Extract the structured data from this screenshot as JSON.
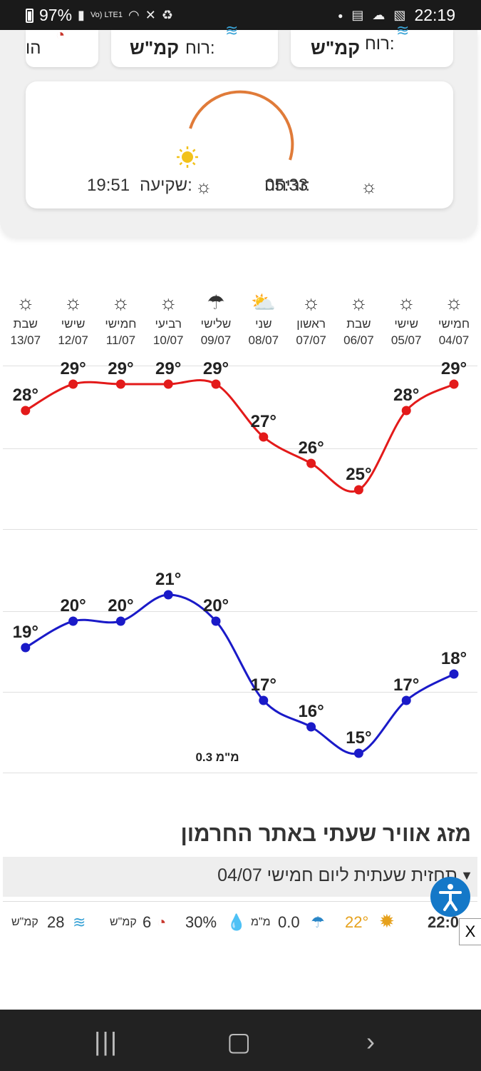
{
  "status_bar": {
    "battery": "97%",
    "network": "Vo) LTE1",
    "time": "22:19"
  },
  "wind_cards": [
    {
      "label": "רוח:",
      "value": "קמ\"ש"
    },
    {
      "label": "רוח:",
      "value": "קמ\"ש"
    },
    {
      "label": "הו"
    }
  ],
  "sun": {
    "sunrise_label": "זריחה:",
    "sunrise_time": "05:33",
    "sunset_label": "שקיעה:",
    "sunset_time": "19:51",
    "colors": {
      "arc": "#e07b39",
      "sun": "#f2c21b",
      "sunrise_icon": "#e06a2a",
      "sunset_icon": "#1f3a5a"
    }
  },
  "forecast": [
    {
      "day": "חמישי",
      "date": "04/07",
      "icon": "sun-icon",
      "high": 29,
      "low": 18
    },
    {
      "day": "שישי",
      "date": "05/07",
      "icon": "sun-icon",
      "high": 28,
      "low": 17
    },
    {
      "day": "שבת",
      "date": "06/07",
      "icon": "sun-icon",
      "high": 25,
      "low": 15
    },
    {
      "day": "ראשון",
      "date": "07/07",
      "icon": "sun-icon",
      "high": 26,
      "low": 16
    },
    {
      "day": "שני",
      "date": "08/07",
      "icon": "partly-cloudy-icon",
      "high": 27,
      "low": 17
    },
    {
      "day": "שלישי",
      "date": "09/07",
      "icon": "cloud-rain-sun-icon",
      "high": 29,
      "low": 20
    },
    {
      "day": "רביעי",
      "date": "10/07",
      "icon": "sun-icon",
      "high": 29,
      "low": 21
    },
    {
      "day": "חמישי",
      "date": "11/07",
      "icon": "sun-icon",
      "high": 29,
      "low": 20
    },
    {
      "day": "שישי",
      "date": "12/07",
      "icon": "sun-icon",
      "high": 29,
      "low": 20
    },
    {
      "day": "שבת",
      "date": "13/07",
      "icon": "sun-icon",
      "high": 28,
      "low": 19
    }
  ],
  "chart_data": {
    "type": "line",
    "categories": [
      "04/07",
      "05/07",
      "06/07",
      "07/07",
      "08/07",
      "09/07",
      "10/07",
      "11/07",
      "12/07",
      "13/07"
    ],
    "series": [
      {
        "values": [
          29,
          28,
          25,
          26,
          27,
          29,
          29,
          29,
          29,
          28
        ],
        "color": "#e31a1a"
      },
      {
        "values": [
          18,
          17,
          15,
          16,
          17,
          20,
          21,
          20,
          20,
          19
        ],
        "color": "#1a1ac8"
      }
    ],
    "degree_symbol": "°",
    "precip_label": "0.3 מ\"מ",
    "precip_category": "09/07"
  },
  "hourly": {
    "section_title": "מזג אוויר שעתי באתר החרמון",
    "toggle_text": "תחזית שעתית ליום חמישי 04/07",
    "row": {
      "time": "22:0",
      "temp": "22°",
      "rain": "0.0",
      "rain_unit": "מ\"מ",
      "humidity": "30%",
      "gust": "6",
      "gust_unit": "קמ\"ש",
      "wind": "28",
      "wind_unit": "קמ\"ש"
    },
    "close_label": "X"
  }
}
